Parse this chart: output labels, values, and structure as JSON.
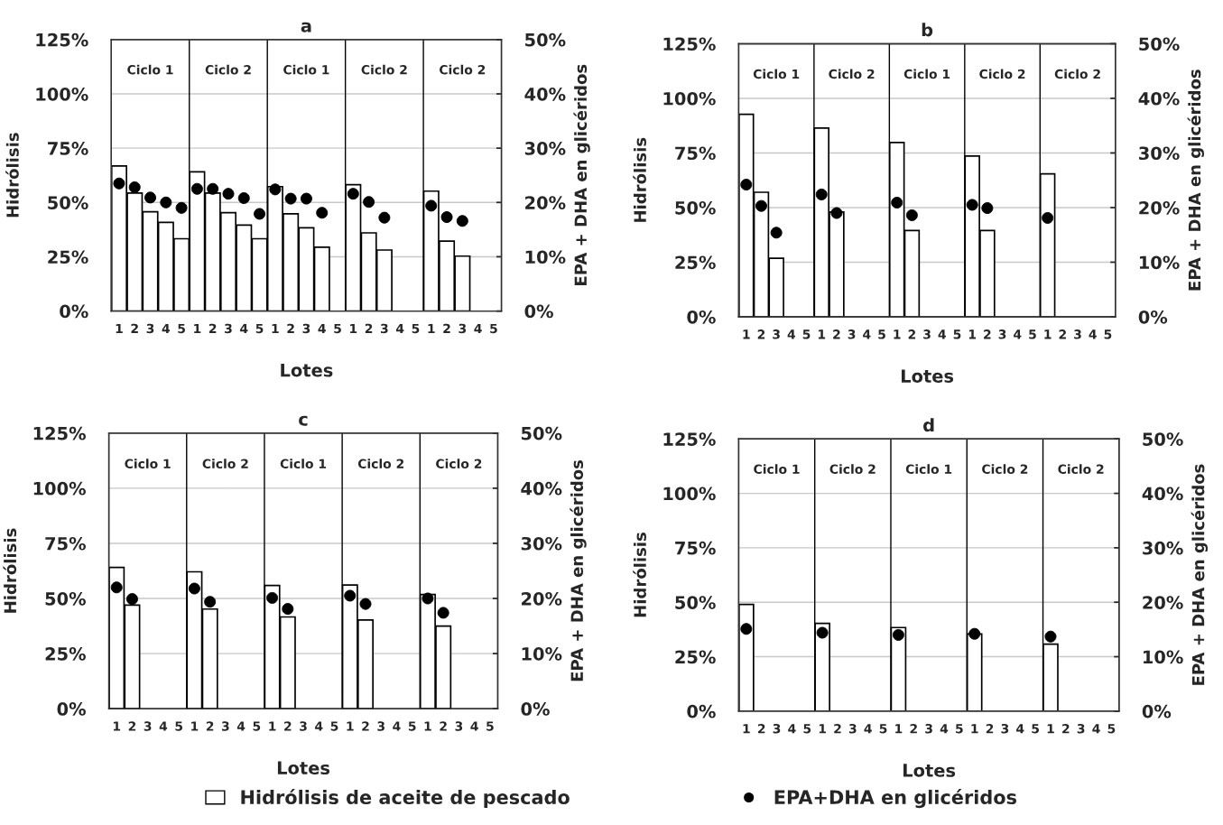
{
  "chart_data": [
    {
      "type": "bar",
      "title": "a",
      "xlabel": "Lotes",
      "ylabel": "Hidrólisis",
      "y2label": "EPA + DHA en glicéridos",
      "grid": "y",
      "categories": [
        "1",
        "2",
        "3",
        "4",
        "5",
        "1",
        "2",
        "3",
        "4",
        "5",
        "1",
        "2",
        "3",
        "4",
        "5",
        "1",
        "2",
        "3",
        "4",
        "5",
        "1",
        "2",
        "3",
        "4",
        "5"
      ],
      "ylim": [
        0,
        125
      ],
      "yticks": [
        {
          "value": 0,
          "label": "0%"
        },
        {
          "value": 25,
          "label": "25%"
        },
        {
          "value": 50,
          "label": "50%"
        },
        {
          "value": 75,
          "label": "75%"
        },
        {
          "value": 100,
          "label": "100%"
        },
        {
          "value": 125,
          "label": "125%"
        }
      ],
      "y2lim": [
        0,
        50
      ],
      "y2ticks": [
        {
          "value": 0,
          "label": "0%"
        },
        {
          "value": 10,
          "label": "10%"
        },
        {
          "value": 20,
          "label": "20%"
        },
        {
          "value": 30,
          "label": "30%"
        },
        {
          "value": 40,
          "label": "40%"
        },
        {
          "value": 50,
          "label": "50%"
        }
      ],
      "annotations": [
        "Ciclo 1",
        "Ciclo 2",
        "Ciclo 1",
        "Ciclo 2",
        "Ciclo 2"
      ],
      "series": [
        {
          "color": "#ffffff",
          "values": [
            66.8,
            54.3,
            45.7,
            40.8,
            33.3,
            64.1,
            54.3,
            45.3,
            39.6,
            33.3,
            57.3,
            44.8,
            38.3,
            29.4,
            null,
            58.2,
            36,
            28.1,
            null,
            null,
            55.2,
            32.2,
            25.3,
            null,
            null
          ]
        },
        {
          "type": "scatter",
          "axis": "y2",
          "marker": "circle",
          "color": "#000000",
          "values": [
            23.5,
            22.8,
            20.9,
            20,
            19,
            22.5,
            22.5,
            21.6,
            20.8,
            17.9,
            22.4,
            20.7,
            20.7,
            18.1,
            null,
            21.6,
            20.1,
            17.2,
            null,
            null,
            19.4,
            17.3,
            16.6,
            null,
            null
          ]
        }
      ]
    },
    {
      "type": "bar",
      "title": "b",
      "xlabel": "Lotes",
      "ylabel": "Hidrólisis",
      "y2label": "EPA + DHA en glicéridos",
      "grid": "y",
      "categories": [
        "1",
        "2",
        "3",
        "4",
        "5",
        "1",
        "2",
        "3",
        "4",
        "5",
        "1",
        "2",
        "3",
        "4",
        "5",
        "1",
        "2",
        "3",
        "4",
        "5",
        "1",
        "2",
        "3",
        "4",
        "5"
      ],
      "ylim": [
        0,
        125
      ],
      "yticks": [
        {
          "value": 0,
          "label": "0%"
        },
        {
          "value": 25,
          "label": "25%"
        },
        {
          "value": 50,
          "label": "50%"
        },
        {
          "value": 75,
          "label": "75%"
        },
        {
          "value": 100,
          "label": "100%"
        },
        {
          "value": 125,
          "label": "125%"
        }
      ],
      "y2lim": [
        0,
        50
      ],
      "y2ticks": [
        {
          "value": 0,
          "label": "0%"
        },
        {
          "value": 10,
          "label": "10%"
        },
        {
          "value": 20,
          "label": "20%"
        },
        {
          "value": 30,
          "label": "30%"
        },
        {
          "value": 40,
          "label": "40%"
        },
        {
          "value": 50,
          "label": "50%"
        }
      ],
      "annotations": [
        "Ciclo 1",
        "Ciclo 2",
        "Ciclo 1",
        "Ciclo 2",
        "Ciclo 2"
      ],
      "series": [
        {
          "color": "#ffffff",
          "values": [
            92.7,
            57,
            26.8,
            null,
            null,
            86.4,
            48,
            null,
            null,
            null,
            79.8,
            39.5,
            null,
            null,
            null,
            73.6,
            39.5,
            null,
            null,
            null,
            65.4,
            null,
            null,
            null,
            null
          ]
        },
        {
          "type": "scatter",
          "axis": "y2",
          "marker": "circle",
          "color": "#000000",
          "values": [
            24.2,
            20.3,
            15.4,
            null,
            null,
            22.4,
            19,
            null,
            null,
            null,
            20.9,
            18.6,
            null,
            null,
            null,
            20.5,
            19.9,
            null,
            null,
            null,
            18.1,
            null,
            null,
            null,
            null
          ]
        }
      ]
    },
    {
      "type": "bar",
      "title": "c",
      "xlabel": "Lotes",
      "ylabel": "Hidrólisis",
      "y2label": "EPA + DHA en glicéridos",
      "grid": "y",
      "categories": [
        "1",
        "2",
        "3",
        "4",
        "5",
        "1",
        "2",
        "3",
        "4",
        "5",
        "1",
        "2",
        "3",
        "4",
        "5",
        "1",
        "2",
        "3",
        "4",
        "5",
        "1",
        "2",
        "3",
        "4",
        "5"
      ],
      "ylim": [
        0,
        125
      ],
      "yticks": [
        {
          "value": 0,
          "label": "0%"
        },
        {
          "value": 25,
          "label": "25%"
        },
        {
          "value": 50,
          "label": "50%"
        },
        {
          "value": 75,
          "label": "75%"
        },
        {
          "value": 100,
          "label": "100%"
        },
        {
          "value": 125,
          "label": "125%"
        }
      ],
      "y2lim": [
        0,
        50
      ],
      "y2ticks": [
        {
          "value": 0,
          "label": "0%"
        },
        {
          "value": 10,
          "label": "10%"
        },
        {
          "value": 20,
          "label": "20%"
        },
        {
          "value": 30,
          "label": "30%"
        },
        {
          "value": 40,
          "label": "40%"
        },
        {
          "value": 50,
          "label": "50%"
        }
      ],
      "annotations": [
        "Ciclo 1",
        "Ciclo 2",
        "Ciclo 1",
        "Ciclo 2",
        "Ciclo 2"
      ],
      "series": [
        {
          "color": "#ffffff",
          "values": [
            64.1,
            47,
            null,
            null,
            null,
            62.1,
            45.2,
            null,
            null,
            null,
            55.9,
            41.6,
            null,
            null,
            null,
            56.1,
            40.2,
            null,
            null,
            null,
            51.8,
            37.5,
            null,
            null,
            null
          ]
        },
        {
          "type": "scatter",
          "axis": "y2",
          "marker": "circle",
          "color": "#000000",
          "values": [
            22,
            19.9,
            null,
            null,
            null,
            21.8,
            19.4,
            null,
            null,
            null,
            20.1,
            18.1,
            null,
            null,
            null,
            20.5,
            19,
            null,
            null,
            null,
            20,
            17.4,
            null,
            null,
            null
          ]
        }
      ]
    },
    {
      "type": "bar",
      "title": "d",
      "xlabel": "Lotes",
      "ylabel": "Hidrólisis",
      "y2label": "EPA + DHA en glicéridos",
      "grid": "y",
      "legend": "bottom",
      "categories": [
        "1",
        "2",
        "3",
        "4",
        "5",
        "1",
        "2",
        "3",
        "4",
        "5",
        "1",
        "2",
        "3",
        "4",
        "5",
        "1",
        "2",
        "3",
        "4",
        "5",
        "1",
        "2",
        "3",
        "4",
        "5"
      ],
      "ylim": [
        0,
        125
      ],
      "yticks": [
        {
          "value": 0,
          "label": "0%"
        },
        {
          "value": 25,
          "label": "25%"
        },
        {
          "value": 50,
          "label": "50%"
        },
        {
          "value": 75,
          "label": "75%"
        },
        {
          "value": 100,
          "label": "100%"
        },
        {
          "value": 125,
          "label": "125%"
        }
      ],
      "y2lim": [
        0,
        50
      ],
      "y2ticks": [
        {
          "value": 0,
          "label": "0%"
        },
        {
          "value": 10,
          "label": "10%"
        },
        {
          "value": 20,
          "label": "20%"
        },
        {
          "value": 30,
          "label": "30%"
        },
        {
          "value": 40,
          "label": "40%"
        },
        {
          "value": 50,
          "label": "50%"
        }
      ],
      "annotations": [
        "Ciclo 1",
        "Ciclo 2",
        "Ciclo 1",
        "Ciclo 2",
        "Ciclo 2"
      ],
      "series": [
        {
          "name": "Hidrólisis de aceite de pescado",
          "color": "#ffffff",
          "values": [
            49,
            null,
            null,
            null,
            null,
            40.3,
            null,
            null,
            null,
            null,
            38.4,
            null,
            null,
            null,
            null,
            35.4,
            null,
            null,
            null,
            null,
            30.8,
            null,
            null,
            null,
            null
          ]
        },
        {
          "type": "scatter",
          "name": "EPA+DHA en glicéridos",
          "axis": "y2",
          "marker": "circle",
          "color": "#000000",
          "values": [
            15.1,
            null,
            null,
            null,
            null,
            14.4,
            null,
            null,
            null,
            null,
            14,
            null,
            null,
            null,
            null,
            14.2,
            null,
            null,
            null,
            null,
            13.7,
            null,
            null,
            null,
            null
          ]
        }
      ]
    }
  ]
}
